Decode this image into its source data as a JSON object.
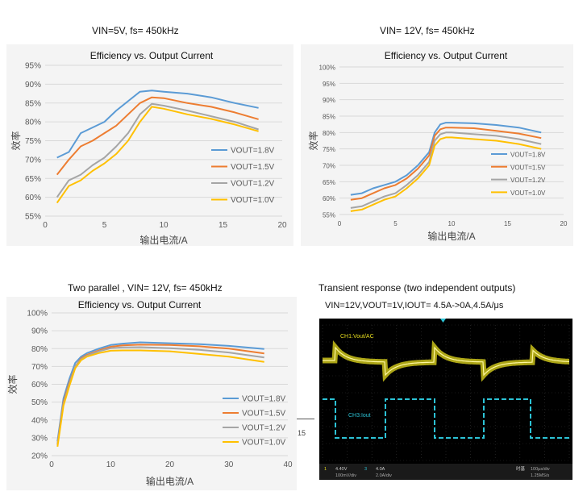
{
  "captions": {
    "c1": "VIN=5V, fs= 450kHz",
    "c2": "VIN= 12V, fs= 450kHz",
    "c3": "Two parallel , VIN= 12V, fs= 450kHz",
    "c4": "Transient response (two independent outputs)",
    "c4sub": "VIN=12V,VOUT=1V,IOUT= 4.5A->0A,4.5A/μs"
  },
  "colors": {
    "s18": "#5b9bd5",
    "s15": "#ed7d31",
    "s12": "#a5a5a5",
    "s10": "#ffc000",
    "grid": "#d9d9d9",
    "panelbg": "#f4f4f4"
  },
  "chart_data": [
    {
      "type": "line",
      "title": "Efficiency vs. Output Current",
      "xlabel": "输出电流/A",
      "ylabel": "效率",
      "xlim": [
        0,
        20
      ],
      "ylim": [
        55,
        95
      ],
      "xticks": [
        "0",
        "5",
        "10",
        "15",
        "20"
      ],
      "yticks": [
        "55%",
        "60%",
        "65%",
        "70%",
        "75%",
        "80%",
        "85%",
        "90%",
        "95%"
      ],
      "legend": "right",
      "series": [
        {
          "name": "VOUT=1.8V",
          "x": [
            1,
            2,
            3,
            4,
            5,
            6,
            7,
            8,
            9,
            10,
            12,
            14,
            16,
            18
          ],
          "y": [
            70.5,
            72,
            77,
            78.5,
            80,
            83,
            85.5,
            88,
            88.3,
            88,
            87.5,
            86.5,
            85,
            83.7
          ]
        },
        {
          "name": "VOUT=1.5V",
          "x": [
            1,
            2,
            3,
            4,
            5,
            6,
            7,
            8,
            9,
            10,
            12,
            14,
            16,
            18
          ],
          "y": [
            66,
            70,
            73.5,
            75,
            77,
            79,
            82,
            85,
            86.5,
            86.3,
            85,
            84,
            82.5,
            80.7
          ]
        },
        {
          "name": "VOUT=1.2V",
          "x": [
            1,
            2,
            3,
            4,
            5,
            6,
            7,
            8,
            9,
            10,
            12,
            14,
            16,
            18
          ],
          "y": [
            60,
            64.5,
            66,
            68.5,
            70.5,
            73.5,
            77,
            82,
            84.8,
            84.3,
            83,
            81.5,
            80,
            78
          ]
        },
        {
          "name": "VOUT=1.0V",
          "x": [
            1,
            2,
            3,
            4,
            5,
            6,
            7,
            8,
            9,
            10,
            12,
            14,
            16,
            18
          ],
          "y": [
            58.5,
            63,
            64.5,
            67,
            69,
            71.5,
            75,
            80,
            84,
            83.5,
            82,
            80.8,
            79.3,
            77.5
          ]
        }
      ]
    },
    {
      "type": "line",
      "title": "Efficiency vs. Output Current",
      "xlabel": "输出电流/A",
      "ylabel": "效率",
      "xlim": [
        0,
        20
      ],
      "ylim": [
        55,
        100
      ],
      "xticks": [
        "0",
        "5",
        "10",
        "15",
        "20"
      ],
      "yticks": [
        "55%",
        "60%",
        "65%",
        "70%",
        "75%",
        "80%",
        "85%",
        "90%",
        "95%",
        "100%"
      ],
      "legend": "right",
      "series": [
        {
          "name": "VOUT=1.8V",
          "x": [
            1,
            2,
            3,
            4,
            5,
            6,
            7,
            8,
            8.5,
            9,
            9.5,
            10,
            12,
            14,
            16,
            18
          ],
          "y": [
            61,
            61.5,
            63,
            64,
            65,
            67,
            70,
            74,
            80,
            82.5,
            83,
            83,
            82.8,
            82.3,
            81.5,
            80
          ]
        },
        {
          "name": "VOUT=1.5V",
          "x": [
            1,
            2,
            3,
            4,
            5,
            6,
            7,
            8,
            8.5,
            9,
            9.5,
            10,
            12,
            14,
            16,
            18
          ],
          "y": [
            59.5,
            60,
            61.5,
            63,
            64,
            66,
            69,
            73,
            79,
            81,
            81.5,
            81.5,
            81.3,
            80.5,
            79.7,
            78.3
          ]
        },
        {
          "name": "VOUT=1.2V",
          "x": [
            1,
            2,
            3,
            4,
            5,
            6,
            7,
            8,
            8.5,
            9,
            9.5,
            10,
            12,
            14,
            16,
            18
          ],
          "y": [
            57,
            57.5,
            59,
            60.5,
            61.5,
            64,
            67,
            71,
            77.5,
            79.5,
            80,
            80,
            79.5,
            79,
            78,
            76.5
          ]
        },
        {
          "name": "VOUT=1.0V",
          "x": [
            1,
            2,
            3,
            4,
            5,
            6,
            7,
            8,
            8.5,
            9,
            9.5,
            10,
            12,
            14,
            16,
            18
          ],
          "y": [
            56,
            56.5,
            58,
            59.5,
            60.5,
            63,
            66,
            70,
            76,
            78,
            78.5,
            78.5,
            78,
            77.5,
            76.5,
            75
          ]
        }
      ]
    },
    {
      "type": "line",
      "title": "Efficiency vs. Output Current",
      "xlabel": "输出电流/A",
      "ylabel": "效率",
      "xlim": [
        0,
        40
      ],
      "ylim": [
        20,
        100
      ],
      "xticks": [
        "0",
        "10",
        "20",
        "30",
        "40"
      ],
      "yticks": [
        "20%",
        "30%",
        "40%",
        "50%",
        "60%",
        "70%",
        "80%",
        "90%",
        "100%"
      ],
      "legend": "bottom-right",
      "series": [
        {
          "name": "VOUT=1.8V",
          "x": [
            1,
            2,
            3,
            4,
            5,
            6,
            8,
            10,
            12,
            15,
            20,
            25,
            30,
            36
          ],
          "y": [
            28,
            52,
            63,
            72,
            75.5,
            77.5,
            80,
            82,
            82.8,
            83.5,
            83,
            82.5,
            81.5,
            79.8
          ]
        },
        {
          "name": "VOUT=1.5V",
          "x": [
            1,
            2,
            3,
            4,
            5,
            6,
            8,
            10,
            12,
            15,
            20,
            25,
            30,
            36
          ],
          "y": [
            26.5,
            50,
            61,
            70,
            74.5,
            76.5,
            79,
            81,
            81.8,
            82.2,
            82,
            81.3,
            80,
            77.3
          ]
        },
        {
          "name": "VOUT=1.2V",
          "x": [
            1,
            2,
            3,
            4,
            5,
            6,
            8,
            10,
            12,
            15,
            20,
            25,
            30,
            36
          ],
          "y": [
            26,
            49,
            60,
            70,
            74,
            76,
            78.5,
            80.2,
            80.7,
            80.8,
            80.2,
            79.3,
            77.8,
            75
          ]
        },
        {
          "name": "VOUT=1.0V",
          "x": [
            1,
            2,
            3,
            4,
            5,
            6,
            8,
            10,
            12,
            15,
            20,
            25,
            30,
            36
          ],
          "y": [
            25,
            48,
            59,
            69,
            73.5,
            75.5,
            77.5,
            78.8,
            79,
            79,
            78.5,
            77,
            75.5,
            72.5
          ]
        }
      ]
    }
  ],
  "scope": {
    "ch1_label": "CH1:Vout/AC",
    "ch3_label": "CH3:Iout",
    "ch1_color": "#e6dc1e",
    "ch3_color": "#2cc3d6",
    "status": [
      "1",
      "4.40V",
      "100mV/div",
      "3",
      "4.0A",
      "2.0A/div",
      "时基",
      "100µs/div",
      "1.25MS/s"
    ]
  },
  "side_label": "15"
}
